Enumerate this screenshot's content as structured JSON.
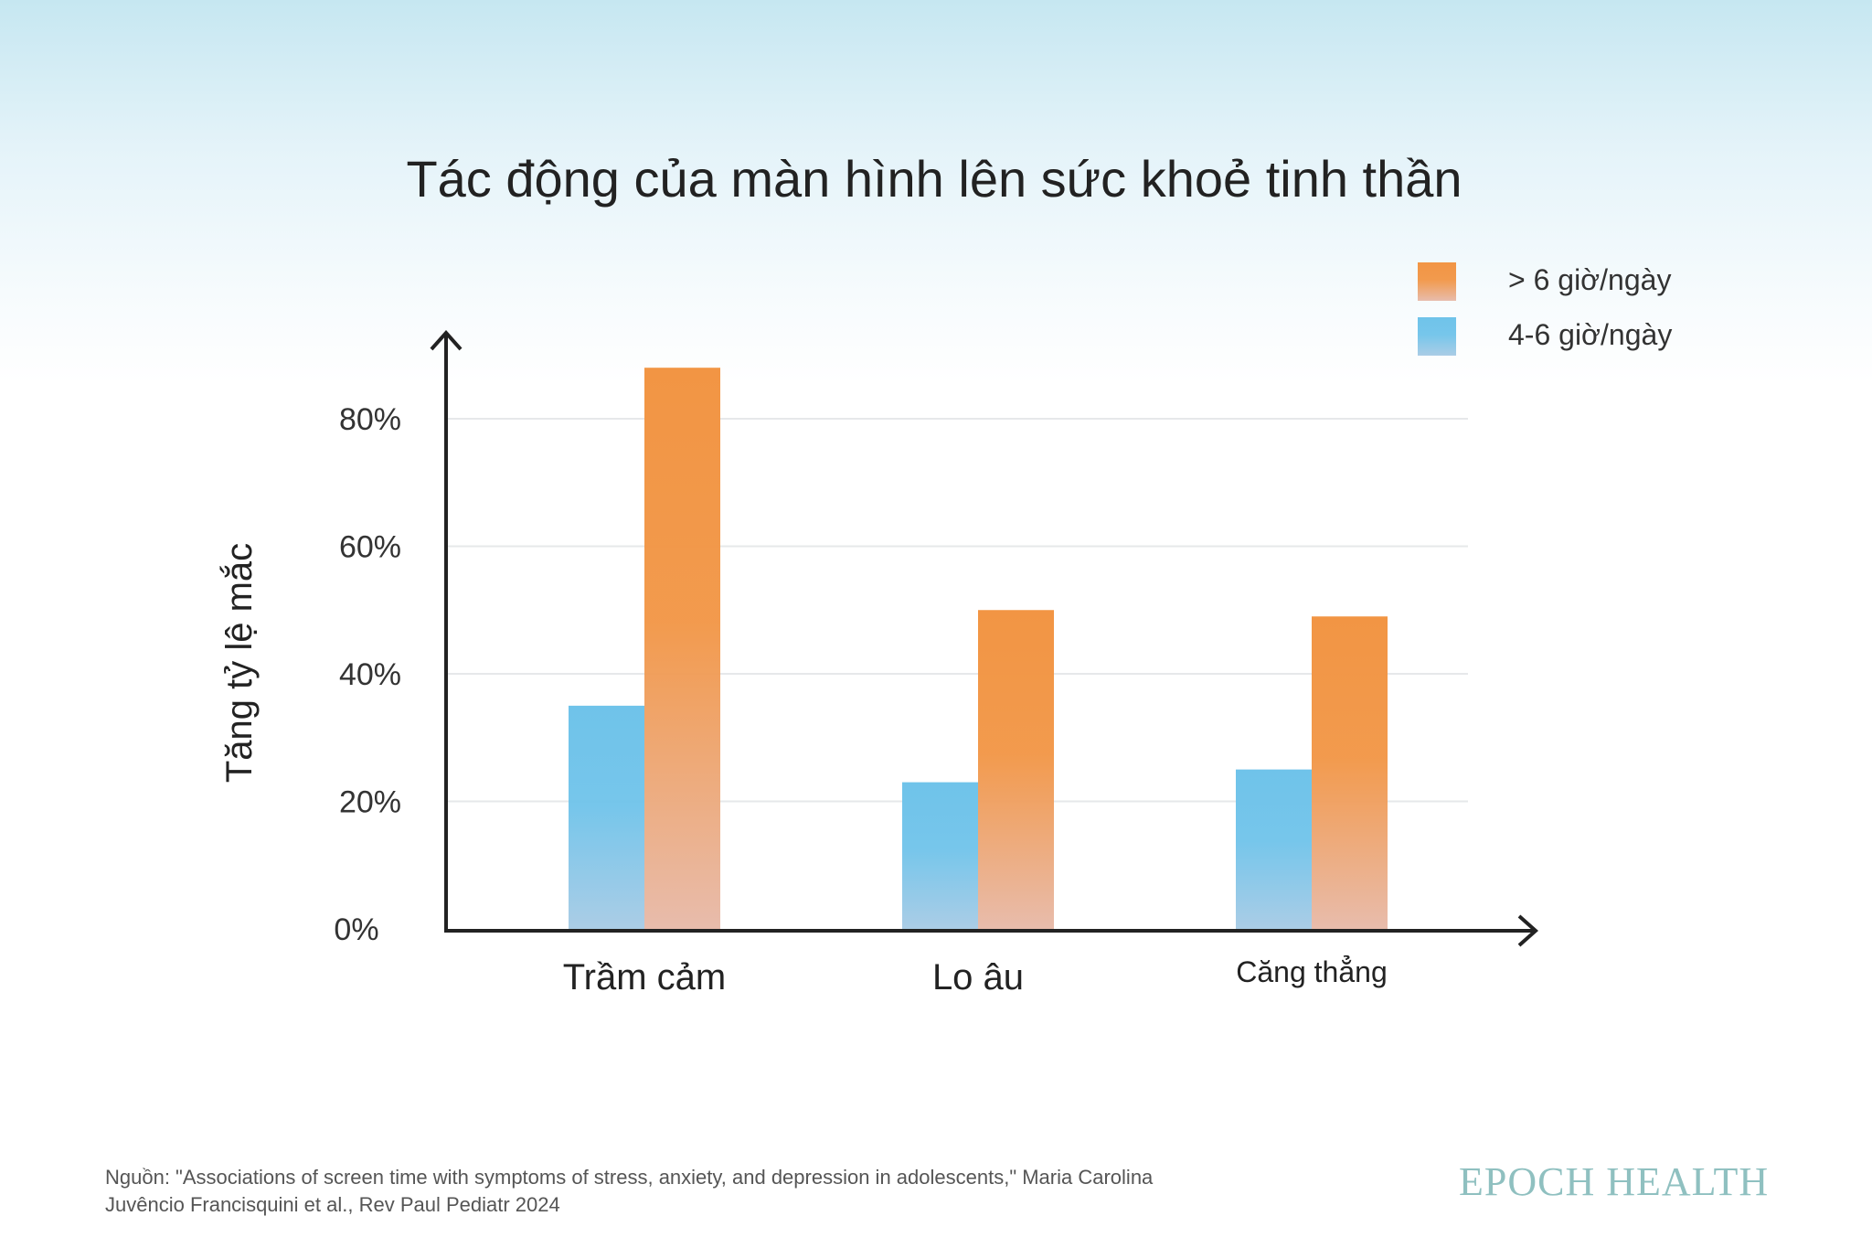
{
  "chart_data": {
    "type": "bar",
    "title": "Tác động của màn hình lên sức khoẻ tinh thần",
    "xlabel": "",
    "ylabel": "Tăng tỷ lệ mắc",
    "ylim": [
      0,
      90
    ],
    "yticks": [
      0,
      20,
      40,
      60,
      80
    ],
    "ytick_labels": [
      "0%",
      "20%",
      "40%",
      "60%",
      "80%"
    ],
    "grid": true,
    "legend_position": "top-right",
    "categories": [
      "Trầm cảm",
      "Lo âu",
      "Căng thẳng"
    ],
    "series": [
      {
        "name": "4-6 giờ/ngày",
        "values": [
          35,
          23,
          25
        ],
        "color_top": "#6fc3ea",
        "color_bottom": "#abcde6"
      },
      {
        "name": "> 6 giờ/ngày",
        "values": [
          88,
          50,
          49
        ],
        "color_top": "#f29544",
        "color_bottom": "#e8bcac"
      }
    ],
    "legend_order": [
      1,
      0
    ]
  },
  "footer": {
    "source_line1": "Nguồn: \"Associations of screen time with symptoms of stress, anxiety, and depression in adolescents,\" Maria Carolina",
    "source_line2": "Juvêncio Francisquini et al., Rev Paul Pediatr 2024",
    "brand": "EPOCH HEALTH"
  }
}
